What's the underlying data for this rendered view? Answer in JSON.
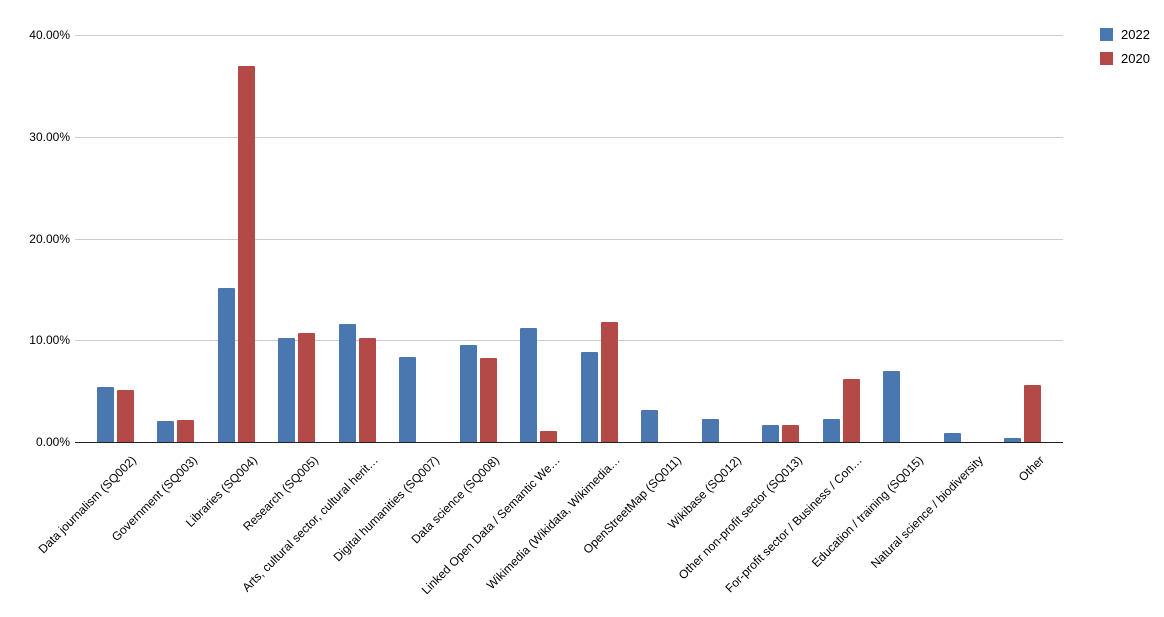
{
  "y_axis": {
    "ticks": [
      "40.00%",
      "30.00%",
      "20.00%",
      "10.00%",
      "0.00%"
    ]
  },
  "chart_data": {
    "type": "bar",
    "title": "",
    "xlabel": "",
    "ylabel": "",
    "ylim": [
      0,
      40
    ],
    "grid": true,
    "legend_position": "top-right",
    "axis_color": "#212121",
    "gridline_color": "#cccccc",
    "categories": [
      "Data journalism (SQ002)",
      "Government (SQ003)",
      "Libraries (SQ004)",
      "Research (SQ005)",
      "Arts, cultural sector, cultural herit…",
      "Digital humanities (SQ007)",
      "Data science (SQ008)",
      "Linked Open Data / Semantic We…",
      "Wikimedia (Wikidata, Wikimedia…",
      "OpenStreetMap (SQ011)",
      "Wikibase (SQ012)",
      "Other non-profit sector (SQ013)",
      "For-profit sector / Business / Con…",
      "Education / training (SQ015)",
      "Natural science / biodiversity",
      "Other"
    ],
    "series": [
      {
        "name": "2022",
        "color": "#4a77af",
        "values": [
          5.4,
          2.1,
          15.1,
          10.2,
          11.6,
          8.4,
          9.5,
          11.2,
          8.8,
          3.1,
          2.3,
          1.7,
          2.3,
          7.0,
          0.9,
          0.4
        ]
      },
      {
        "name": "2020",
        "color": "#b44a48",
        "values": [
          5.1,
          2.2,
          37.0,
          10.7,
          10.2,
          0,
          8.3,
          1.1,
          11.8,
          0,
          0,
          1.7,
          6.2,
          0,
          0,
          5.6
        ]
      }
    ]
  }
}
